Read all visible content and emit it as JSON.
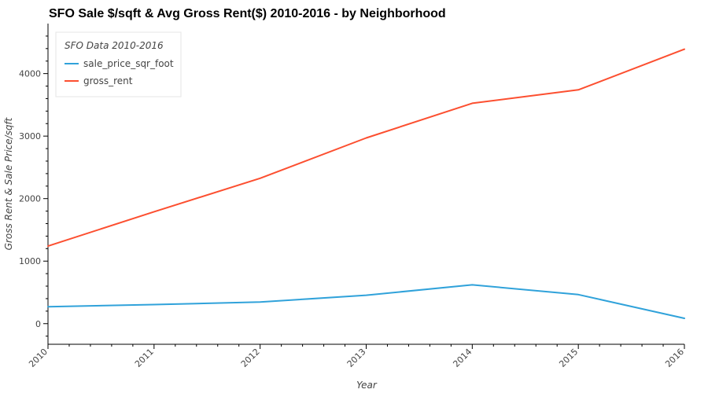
{
  "chart_data": {
    "type": "line",
    "title": "SFO Sale $/sqft & Avg Gross Rent($) 2010-2016 - by Neighborhood",
    "xlabel": "Year",
    "ylabel": "Gross Rent & Sale Price/sqft",
    "x": [
      2010,
      2011,
      2012,
      2013,
      2014,
      2015,
      2016
    ],
    "x_tick_labels": [
      "2010",
      "2011",
      "2012",
      "2013",
      "2014",
      "2015",
      "2016"
    ],
    "y_ticks": [
      0,
      1000,
      2000,
      3000,
      4000
    ],
    "y_tick_labels": [
      "0",
      "1000",
      "2000",
      "3000",
      "4000"
    ],
    "xlim": [
      2010,
      2016
    ],
    "ylim": [
      -330,
      4800
    ],
    "grid": false,
    "legend": {
      "title": "SFO Data 2010-2016",
      "placement": "top-left"
    },
    "series": [
      {
        "name": "sale_price_sqr_foot",
        "color": "#30a2da",
        "values": [
          270,
          305,
          345,
          455,
          620,
          465,
          85
        ]
      },
      {
        "name": "gross_rent",
        "color": "#fc4f30",
        "values": [
          1240,
          1790,
          2325,
          2970,
          3525,
          3740,
          4390
        ]
      }
    ]
  }
}
